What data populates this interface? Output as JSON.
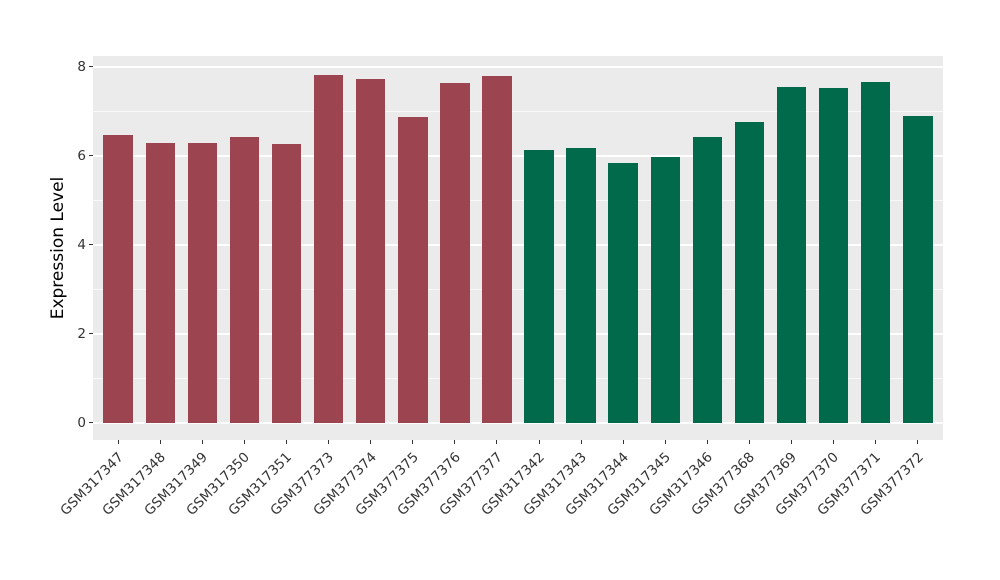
{
  "chart_data": {
    "type": "bar",
    "title": "",
    "xlabel": "",
    "ylabel": "Expression Level",
    "ylim": [
      0,
      8
    ],
    "yticks": [
      0,
      2,
      4,
      6,
      8
    ],
    "grid": true,
    "legend": false,
    "categories": [
      "GSM317347",
      "GSM317348",
      "GSM317349",
      "GSM317350",
      "GSM317351",
      "GSM377373",
      "GSM377374",
      "GSM377375",
      "GSM377376",
      "GSM377377",
      "GSM317342",
      "GSM317343",
      "GSM317344",
      "GSM317345",
      "GSM317346",
      "GSM377368",
      "GSM377369",
      "GSM377370",
      "GSM377371",
      "GSM377372"
    ],
    "values": [
      6.47,
      6.28,
      6.28,
      6.41,
      6.26,
      7.82,
      7.71,
      6.86,
      7.62,
      7.79,
      6.13,
      6.18,
      5.83,
      5.96,
      6.41,
      6.76,
      7.53,
      7.51,
      7.66,
      6.88
    ],
    "bar_colors": [
      "#9C4450",
      "#9C4450",
      "#9C4450",
      "#9C4450",
      "#9C4450",
      "#9C4450",
      "#9C4450",
      "#9C4450",
      "#9C4450",
      "#9C4450",
      "#006A4B",
      "#006A4B",
      "#006A4B",
      "#006A4B",
      "#006A4B",
      "#006A4B",
      "#006A4B",
      "#006A4B",
      "#006A4B",
      "#006A4B"
    ]
  },
  "style": {
    "panel_background": "#EBEBEB",
    "grid_major_color": "#FFFFFF",
    "grid_minor_color": "rgba(255,255,255,0.65)",
    "axis_text_color": "#333333",
    "axis_title_color": "#000000",
    "red_group_color": "#9C4450",
    "green_group_color": "#006A4B"
  }
}
